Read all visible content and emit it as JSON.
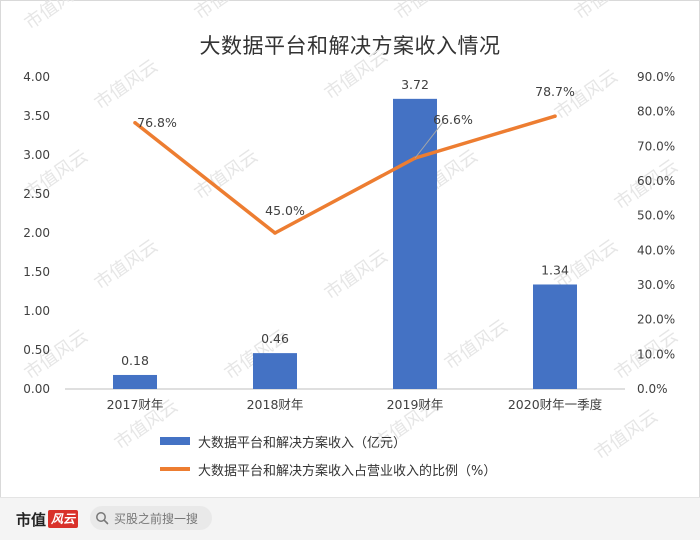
{
  "chart_data": {
    "type": "bar",
    "title": "大数据平台和解决方案收入情况",
    "categories": [
      "2017财年",
      "2018财年",
      "2019财年",
      "2020财年一季度"
    ],
    "series": [
      {
        "name": "大数据平台和解决方案收入（亿元）",
        "type": "bar",
        "axis": "left",
        "values": [
          0.18,
          0.46,
          3.72,
          1.34
        ],
        "labels": [
          "0.18",
          "0.46",
          "3.72",
          "1.34"
        ],
        "color": "#4472c4"
      },
      {
        "name": "大数据平台和解决方案收入占营业收入的比例（%）",
        "type": "line",
        "axis": "right",
        "values": [
          76.8,
          45.0,
          66.6,
          78.7
        ],
        "labels": [
          "76.8%",
          "45.0%",
          "66.6%",
          "78.7%"
        ],
        "color": "#ed7d31"
      }
    ],
    "y_left": {
      "ylim": [
        0,
        4
      ],
      "ticks": [
        "0.00",
        "0.50",
        "1.00",
        "1.50",
        "2.00",
        "2.50",
        "3.00",
        "3.50",
        "4.00"
      ]
    },
    "y_right": {
      "ylim": [
        0,
        90
      ],
      "ticks": [
        "0.0%",
        "10.0%",
        "20.0%",
        "30.0%",
        "40.0%",
        "50.0%",
        "60.0%",
        "70.0%",
        "80.0%",
        "90.0%"
      ]
    },
    "grid": false,
    "legend": "bottom"
  },
  "watermark": "市值风云",
  "footer": {
    "brand": "市值",
    "brand_badge": "风云",
    "search_placeholder": "买股之前搜一搜",
    "search_icon": "search-icon"
  }
}
